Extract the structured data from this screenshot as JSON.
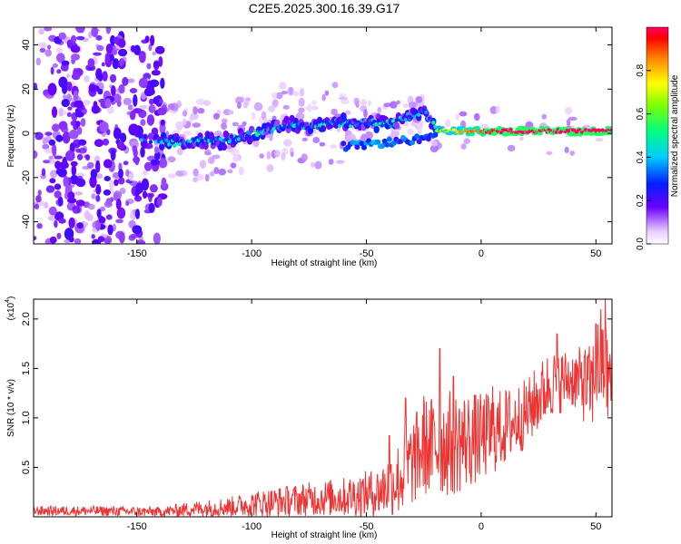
{
  "figure": {
    "title": "C2E5.2025.300.16.39.G17"
  },
  "chart_data": [
    {
      "type": "heatmap",
      "title": "C2E5.2025.300.16.39.G17",
      "xlabel": "Height of straight line (km)",
      "ylabel": "Frequency (Hz)",
      "xlim": [
        -195,
        57
      ],
      "ylim": [
        -50,
        48
      ],
      "xticks": [
        -150,
        -100,
        -50,
        0,
        50
      ],
      "xtick_labels": [
        "-150",
        "-100",
        "-50",
        "0",
        "50"
      ],
      "yticks": [
        -40,
        -20,
        0,
        20,
        40
      ],
      "ytick_labels": [
        "-40",
        "-20",
        "0",
        "20",
        "40"
      ],
      "colorbar": {
        "label": "Normalized spectral amplitude",
        "range": [
          0,
          1
        ],
        "ticks": [
          0.0,
          0.2,
          0.4,
          0.6,
          0.8
        ],
        "tick_labels": [
          "0.0",
          "0.2",
          "0.4",
          "0.6",
          "0.8"
        ]
      },
      "ridge": [
        {
          "x": -150,
          "y": -2
        },
        {
          "x": -140,
          "y": -4
        },
        {
          "x": -130,
          "y": -4
        },
        {
          "x": -110,
          "y": -3
        },
        {
          "x": -95,
          "y": 1
        },
        {
          "x": -85,
          "y": 4
        },
        {
          "x": -75,
          "y": 3
        },
        {
          "x": -60,
          "y": 5
        },
        {
          "x": -50,
          "y": 5
        },
        {
          "x": -40,
          "y": 4
        },
        {
          "x": -30,
          "y": 8
        },
        {
          "x": -25,
          "y": 10
        },
        {
          "x": -20,
          "y": 2
        },
        {
          "x": -15,
          "y": 1
        },
        {
          "x": 0,
          "y": 1
        },
        {
          "x": 20,
          "y": 1
        },
        {
          "x": 40,
          "y": 1
        },
        {
          "x": 55,
          "y": 1
        }
      ],
      "lower_branch": [
        {
          "x": -60,
          "y": -6
        },
        {
          "x": -50,
          "y": -5
        },
        {
          "x": -40,
          "y": -4
        },
        {
          "x": -30,
          "y": -3
        },
        {
          "x": -20,
          "y": -2
        }
      ],
      "stripe_x": [
        -180,
        -163,
        -145
      ],
      "gap_x": [
        -153,
        -140
      ]
    },
    {
      "type": "line",
      "xlabel": "Height of straight line (km)",
      "ylabel": "SNR (10 * v/v)",
      "y_multiplier": "(x10",
      "y_multiplier_exp": "4",
      "y_multiplier_close": ")",
      "xlim": [
        -195,
        57
      ],
      "ylim": [
        0.0,
        2.2
      ],
      "xticks": [
        -150,
        -100,
        -50,
        0,
        50
      ],
      "xtick_labels": [
        "-150",
        "-100",
        "-50",
        "0",
        "50"
      ],
      "yticks": [
        0.5,
        1.0,
        1.5,
        2.0
      ],
      "ytick_labels": [
        "0.5",
        "1.0",
        "1.5",
        "2.0"
      ],
      "color": "#ee3333",
      "envelope": [
        {
          "x": -195,
          "mean": 0.06,
          "spread": 0.05
        },
        {
          "x": -170,
          "mean": 0.06,
          "spread": 0.05
        },
        {
          "x": -140,
          "mean": 0.05,
          "spread": 0.05
        },
        {
          "x": -125,
          "mean": 0.08,
          "spread": 0.08
        },
        {
          "x": -110,
          "mean": 0.1,
          "spread": 0.1
        },
        {
          "x": -100,
          "mean": 0.13,
          "spread": 0.13
        },
        {
          "x": -90,
          "mean": 0.15,
          "spread": 0.15
        },
        {
          "x": -75,
          "mean": 0.18,
          "spread": 0.17
        },
        {
          "x": -60,
          "mean": 0.2,
          "spread": 0.2
        },
        {
          "x": -45,
          "mean": 0.25,
          "spread": 0.25
        },
        {
          "x": -35,
          "mean": 0.4,
          "spread": 0.4
        },
        {
          "x": -25,
          "mean": 0.7,
          "spread": 0.5
        },
        {
          "x": -12,
          "mean": 0.75,
          "spread": 0.55
        },
        {
          "x": 0,
          "mean": 0.8,
          "spread": 0.45
        },
        {
          "x": 10,
          "mean": 0.9,
          "spread": 0.4
        },
        {
          "x": 20,
          "mean": 1.05,
          "spread": 0.35
        },
        {
          "x": 30,
          "mean": 1.35,
          "spread": 0.35
        },
        {
          "x": 40,
          "mean": 1.4,
          "spread": 0.3
        },
        {
          "x": 48,
          "mean": 1.3,
          "spread": 0.45
        },
        {
          "x": 52,
          "mean": 1.6,
          "spread": 0.55
        },
        {
          "x": 57,
          "mean": 1.3,
          "spread": 0.5
        }
      ],
      "peaks": [
        {
          "x": -40,
          "y": 0.82
        },
        {
          "x": -33,
          "y": 1.2
        },
        {
          "x": -25,
          "y": 1.22
        },
        {
          "x": -18,
          "y": 1.7
        },
        {
          "x": -12,
          "y": 1.42
        },
        {
          "x": 5,
          "y": 1.32
        },
        {
          "x": 33,
          "y": 1.85
        },
        {
          "x": 45,
          "y": 1.62
        },
        {
          "x": 50,
          "y": 1.95
        },
        {
          "x": 54,
          "y": 2.2
        }
      ]
    }
  ]
}
